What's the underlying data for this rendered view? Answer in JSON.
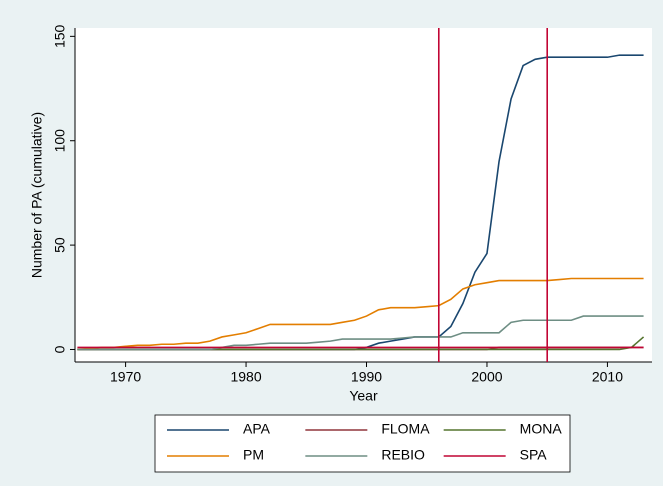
{
  "chart_data": {
    "type": "line",
    "x_label": "Year",
    "y_label": "Number of PA (cumulative)",
    "x": [
      1966,
      1967,
      1968,
      1969,
      1970,
      1971,
      1972,
      1973,
      1974,
      1975,
      1976,
      1977,
      1978,
      1979,
      1980,
      1981,
      1982,
      1983,
      1984,
      1985,
      1986,
      1987,
      1988,
      1989,
      1990,
      1991,
      1992,
      1993,
      1994,
      1995,
      1996,
      1997,
      1998,
      1999,
      2000,
      2001,
      2002,
      2003,
      2004,
      2005,
      2006,
      2007,
      2008,
      2009,
      2010,
      2011,
      2012,
      2013
    ],
    "series": [
      {
        "name": "APA",
        "color": "#1a476f",
        "values": [
          0,
          0,
          0,
          0,
          0,
          0,
          0,
          0,
          0,
          0,
          0,
          0,
          0,
          0,
          0,
          0,
          0,
          0,
          0,
          0,
          0,
          0,
          0,
          0,
          1,
          3,
          4,
          5,
          6,
          6,
          6,
          11,
          22,
          37,
          46,
          90,
          120,
          136,
          139,
          140,
          140,
          140,
          140,
          140,
          140,
          141,
          141,
          141
        ]
      },
      {
        "name": "FLOMA",
        "color": "#90353b",
        "values": [
          0,
          0,
          0,
          0,
          0,
          0,
          0,
          0,
          0,
          0,
          0,
          0,
          0,
          0,
          0,
          0,
          0,
          0,
          0,
          0,
          0,
          0,
          0,
          0,
          0,
          0,
          0,
          0,
          0,
          0,
          0,
          0,
          0,
          0,
          0,
          1,
          1,
          1,
          1,
          1,
          1,
          1,
          1,
          1,
          1,
          1,
          1,
          1
        ]
      },
      {
        "name": "MONA",
        "color": "#55752f",
        "values": [
          0,
          0,
          0,
          0,
          0,
          0,
          0,
          0,
          0,
          0,
          0,
          0,
          0,
          0,
          0,
          0,
          0,
          0,
          0,
          0,
          0,
          0,
          0,
          0,
          0,
          0,
          0,
          0,
          0,
          0,
          0,
          0,
          0,
          0,
          0,
          0,
          0,
          0,
          0,
          0,
          0,
          0,
          0,
          0,
          0,
          0,
          1,
          6
        ]
      },
      {
        "name": "PM",
        "color": "#e37e00",
        "values": [
          0,
          0.5,
          1,
          1,
          1.5,
          2,
          2,
          2.5,
          2.5,
          3,
          3,
          4,
          6,
          7,
          8,
          10,
          12,
          12,
          12,
          12,
          12,
          12,
          13,
          14,
          16,
          19,
          20,
          20,
          20,
          20.5,
          21,
          24,
          29,
          31,
          32,
          33,
          33,
          33,
          33,
          33,
          33.5,
          34,
          34,
          34,
          34,
          34,
          34,
          34
        ]
      },
      {
        "name": "REBIO",
        "color": "#6e8e84",
        "values": [
          0,
          0,
          0,
          0,
          0,
          0,
          0,
          0,
          0,
          0,
          0,
          0,
          1,
          2,
          2,
          2.5,
          3,
          3,
          3,
          3,
          3.5,
          4,
          5,
          5,
          5,
          5,
          5,
          5.5,
          6,
          6,
          6,
          6,
          8,
          8,
          8,
          8,
          13,
          14,
          14,
          14,
          14,
          14,
          16,
          16,
          16,
          16,
          16,
          16
        ]
      },
      {
        "name": "SPA",
        "color": "#c10534",
        "values": [
          1,
          1,
          1,
          1,
          1,
          1,
          1,
          1,
          1,
          1,
          1,
          1,
          1,
          1,
          1,
          1,
          1,
          1,
          1,
          1,
          1,
          1,
          1,
          1,
          1,
          1,
          1,
          1,
          1,
          1,
          1,
          1,
          1,
          1,
          1,
          1,
          1,
          1,
          1,
          1,
          1,
          1,
          1,
          1,
          1,
          1,
          1,
          1
        ]
      }
    ],
    "xlim": [
      1965.8,
      2013.7
    ],
    "ylim": [
      -6,
      154
    ],
    "xticks": [
      1970,
      1980,
      1990,
      2000,
      2010
    ],
    "yticks": [
      0,
      50,
      100,
      150
    ],
    "xlines": [
      1996,
      2005
    ],
    "xline_color": "#c10534",
    "grid": false,
    "legend": "bottom",
    "background": "#eaf2f3"
  }
}
